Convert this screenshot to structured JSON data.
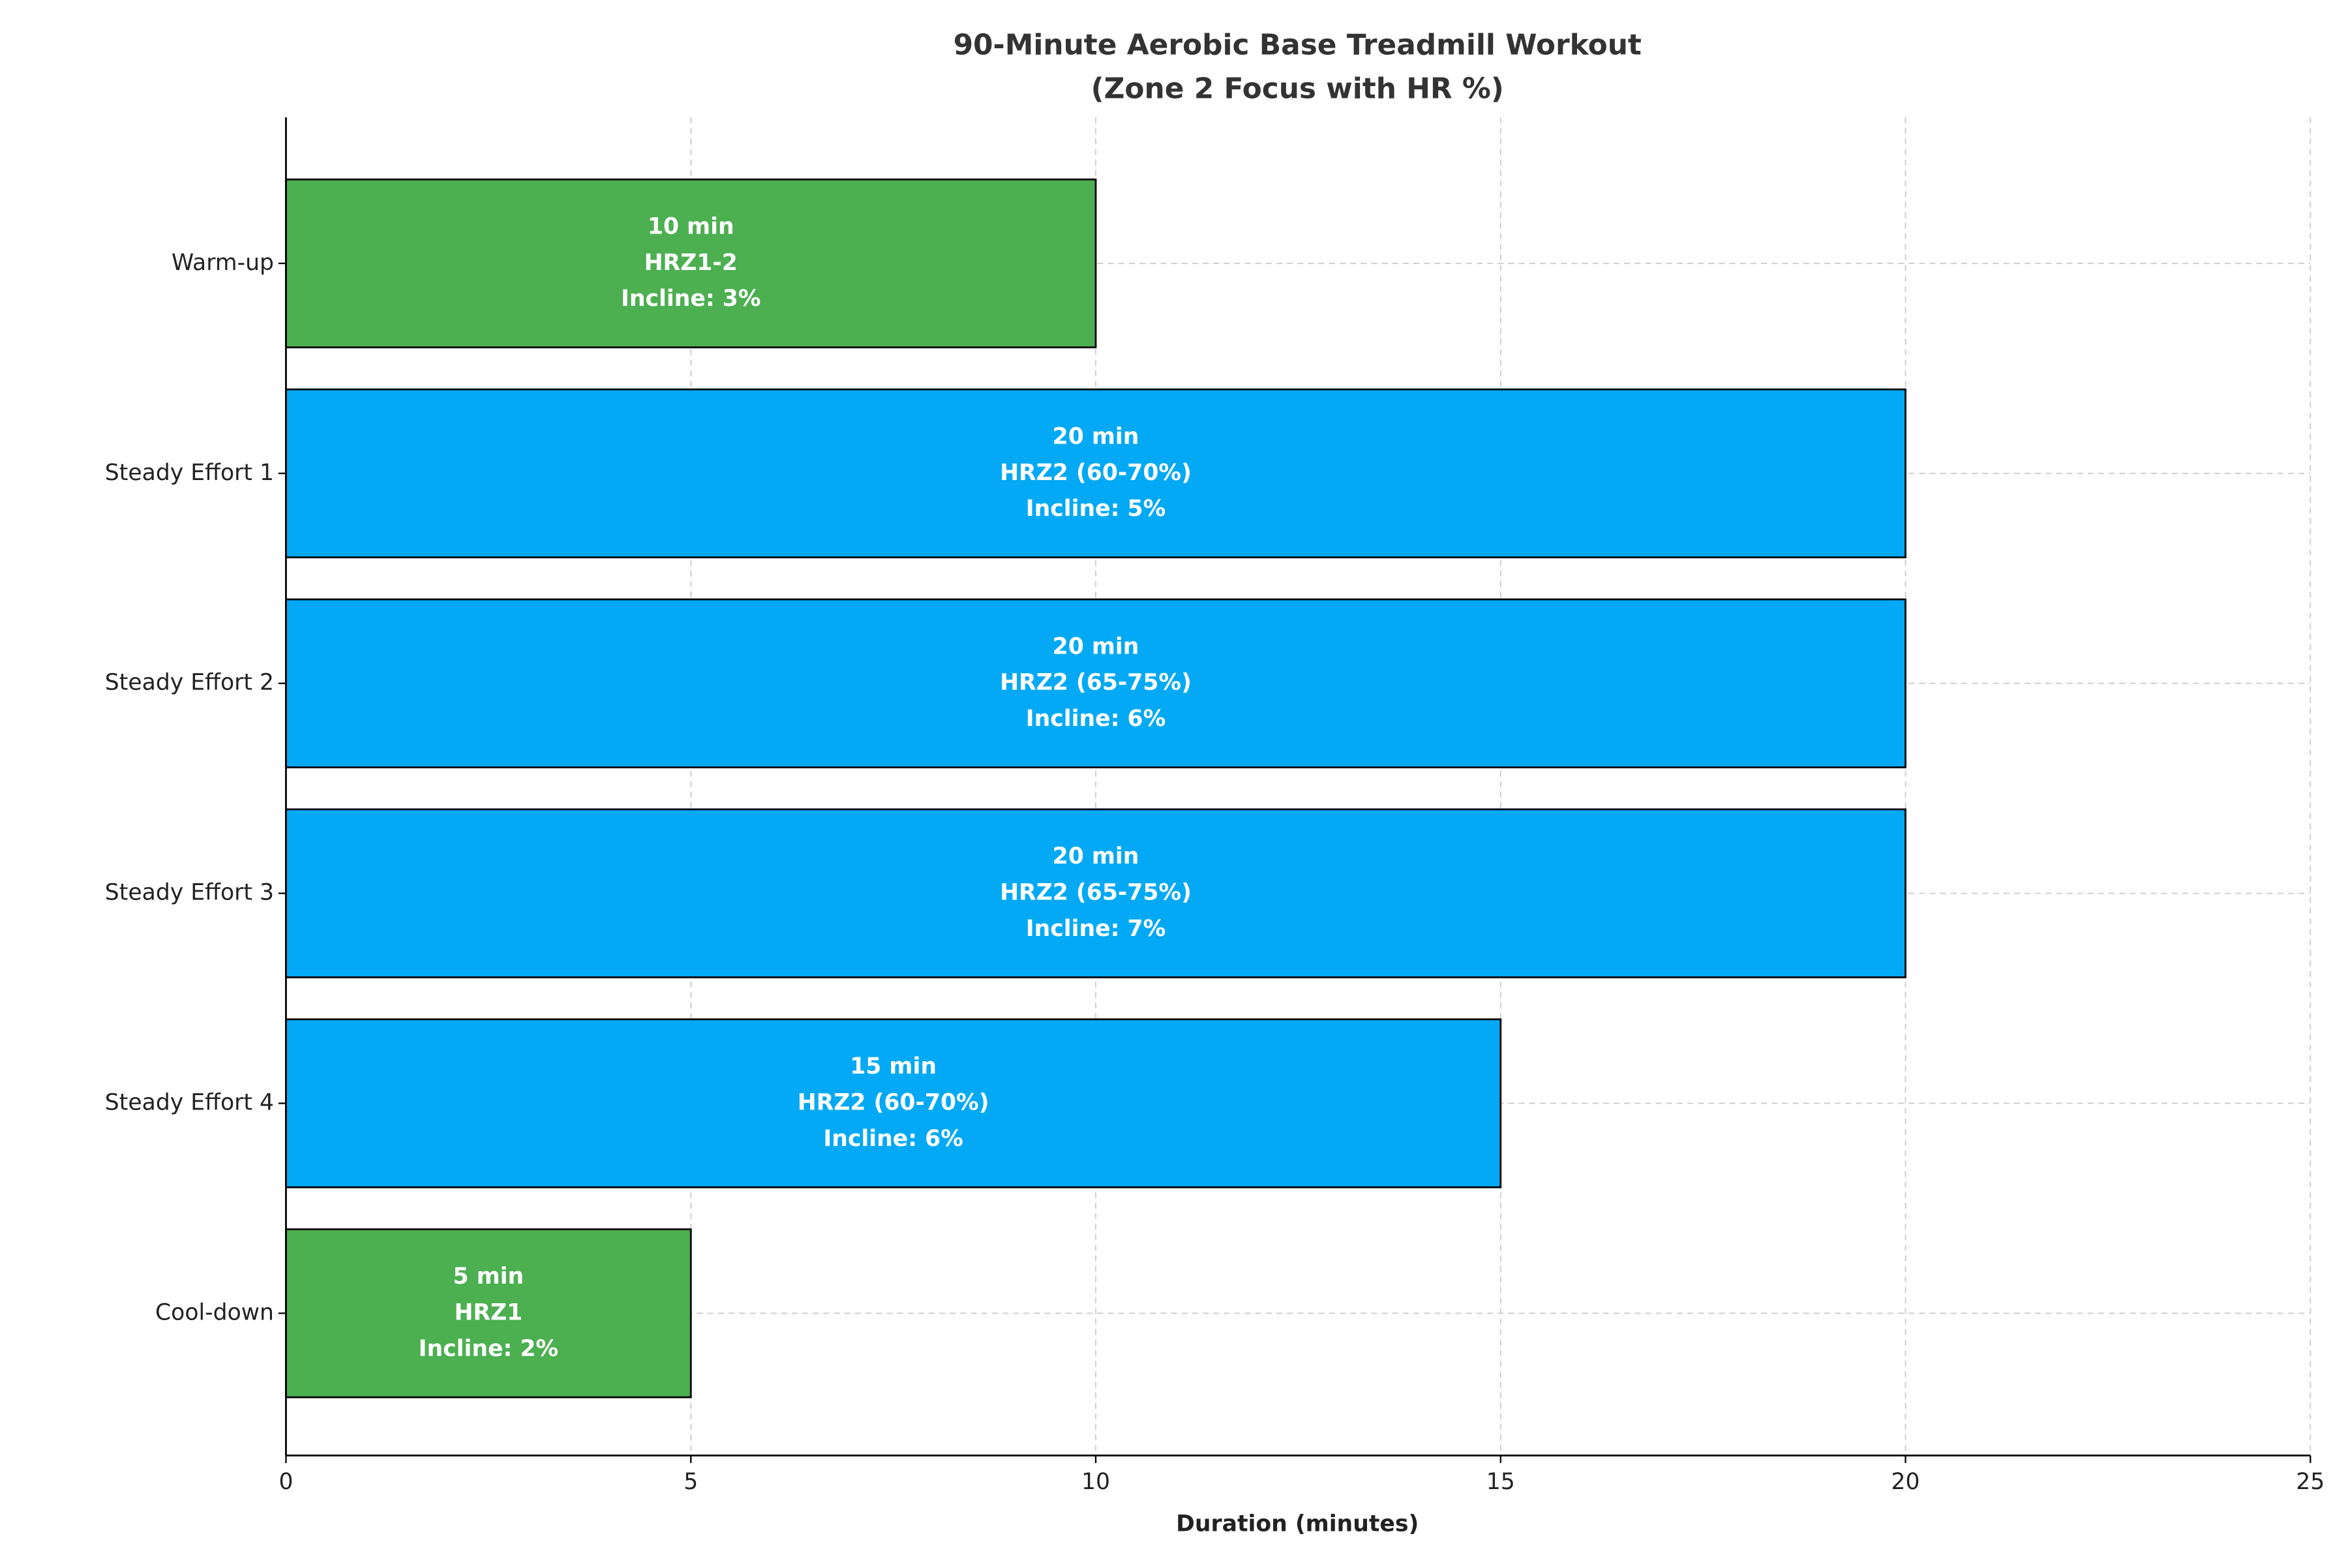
{
  "chart_data": {
    "type": "barh",
    "title": [
      "90-Minute Aerobic Base Treadmill Workout",
      "(Zone 2 Focus with HR %)"
    ],
    "xlabel": "Duration (minutes)",
    "categories": [
      "Warm-up",
      "Steady Effort 1",
      "Steady Effort 2",
      "Steady Effort 3",
      "Steady Effort 4",
      "Cool-down"
    ],
    "values": [
      10,
      20,
      20,
      20,
      15,
      5
    ],
    "value_labels": [
      [
        "10 min",
        "HRZ1-2",
        "Incline: 3%"
      ],
      [
        "20 min",
        "HRZ2 (60-70%)",
        "Incline: 5%"
      ],
      [
        "20 min",
        "HRZ2 (65-75%)",
        "Incline: 6%"
      ],
      [
        "20 min",
        "HRZ2 (65-75%)",
        "Incline: 7%"
      ],
      [
        "15 min",
        "HRZ2 (60-70%)",
        "Incline: 6%"
      ],
      [
        "5 min",
        "HRZ1",
        "Incline: 2%"
      ]
    ],
    "colors": [
      "#4caf50",
      "#03a9f4",
      "#03a9f4",
      "#03a9f4",
      "#03a9f4",
      "#4caf50"
    ],
    "xlim": [
      0,
      25
    ],
    "xticks": [
      0,
      5,
      10,
      15,
      20,
      25
    ],
    "grid": true
  }
}
